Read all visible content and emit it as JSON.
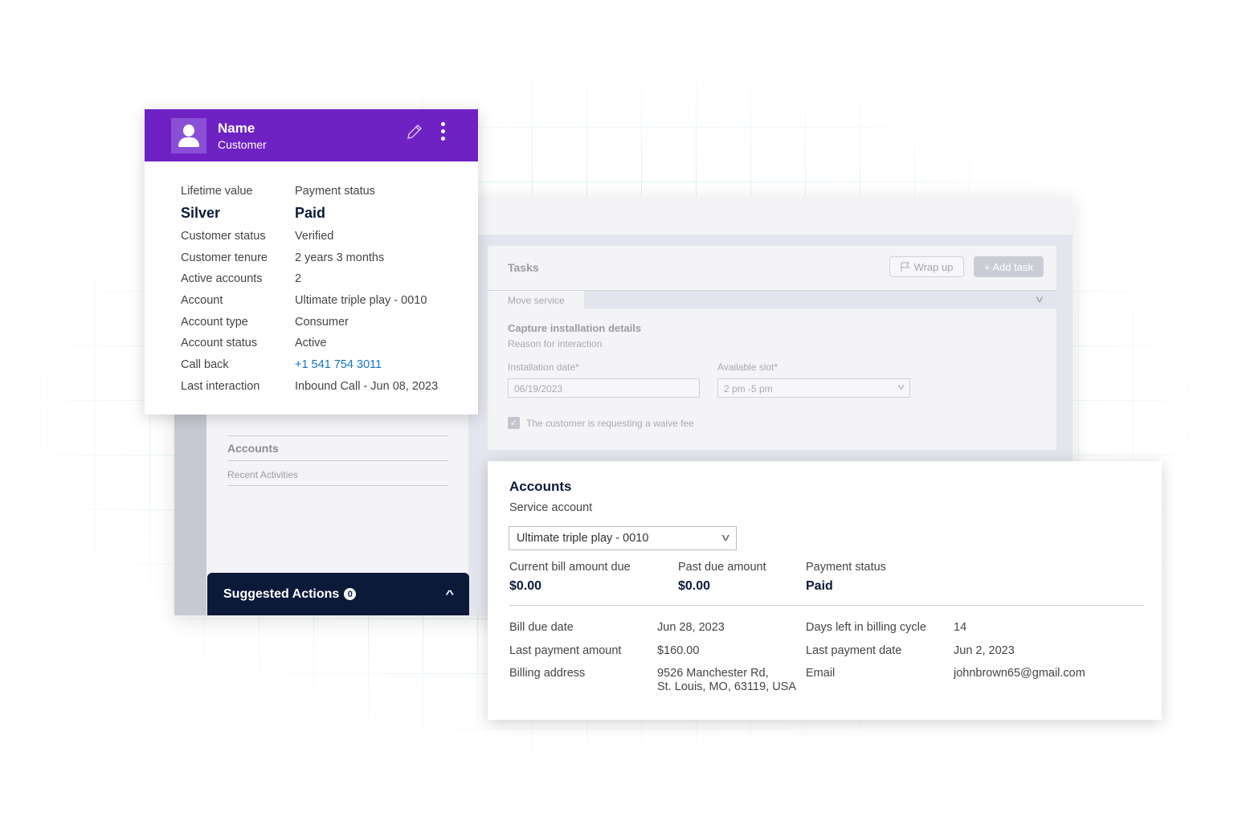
{
  "customer_card": {
    "name": "Name",
    "role": "Customer",
    "lifetime_value_label": "Lifetime value",
    "lifetime_value": "Silver",
    "payment_status_label": "Payment status",
    "payment_status": "Paid",
    "rows": [
      {
        "label": "Customer status",
        "value": "Verified"
      },
      {
        "label": "Customer tenure",
        "value": "2 years 3 months"
      },
      {
        "label": "Active accounts",
        "value": "2"
      },
      {
        "label": "Account",
        "value": "Ultimate triple play - 0010"
      },
      {
        "label": "Account type",
        "value": "Consumer"
      },
      {
        "label": "Account status",
        "value": "Active"
      },
      {
        "label": "Call back",
        "value": "+1 541 754 3011"
      },
      {
        "label": "Last interaction",
        "value": "Inbound Call - Jun 08, 2023"
      }
    ]
  },
  "left_panel": {
    "accounts": "Accounts",
    "recent": "Recent Activities",
    "suggested_actions": "Suggested Actions",
    "suggested_count": "0"
  },
  "tasks": {
    "title": "Tasks",
    "wrap_up": "Wrap up",
    "add_task": "+ Add task",
    "tab": "Move service",
    "capture_title": "Capture installation details",
    "capture_sub": "Reason for interaction",
    "date_label": "Installation date*",
    "date_value": "06/19/2023",
    "slot_label": "Available slot*",
    "slot_value": "2 pm -5 pm",
    "waive_label": "The customer is requesting a waive fee"
  },
  "accounts": {
    "title": "Accounts",
    "service_account_label": "Service account",
    "service_account": "Ultimate triple play - 0010",
    "current_bill_label": "Current bill amount due",
    "current_bill": "$0.00",
    "past_due_label": "Past due amount",
    "past_due": "$0.00",
    "payment_status_label": "Payment status",
    "payment_status": "Paid",
    "bill_due_label": "Bill due date",
    "bill_due": "Jun 28, 2023",
    "days_left_label": "Days left in billing cycle",
    "days_left": "14",
    "last_payment_amount_label": "Last payment amount",
    "last_payment_amount": "$160.00",
    "last_payment_date_label": "Last payment date",
    "last_payment_date": "Jun 2, 2023",
    "billing_address_label": "Billing address",
    "billing_address_line1": "9526 Manchester Rd,",
    "billing_address_line2": "St. Louis, MO, 63119, USA",
    "email_label": "Email",
    "email": "johnbrown65@gmail.com"
  },
  "colors": {
    "header_purple": "#6f22c4",
    "navy": "#0c1a3a",
    "link_blue": "#1473c6"
  }
}
